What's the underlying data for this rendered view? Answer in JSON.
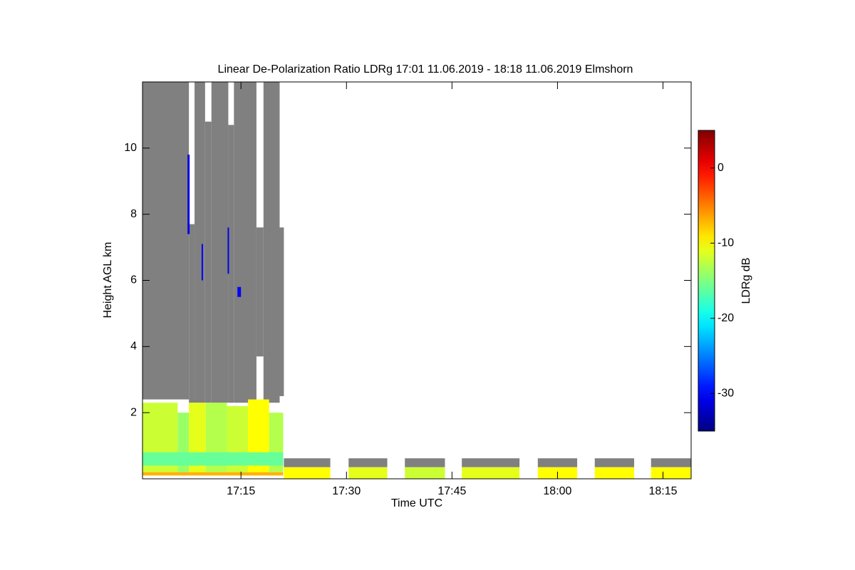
{
  "chart_data": {
    "type": "heatmap",
    "title": "Linear De-Polarization Ratio LDRg   17:01 11.06.2019 - 18:18 11.06.2019 Elmshorn",
    "x_label": "Time UTC",
    "y_label": "Height AGL km",
    "colorbar_label": "LDRg dB",
    "xlim": [
      1021,
      1099
    ],
    "xticks": [
      {
        "value": 1035,
        "label": "17:15"
      },
      {
        "value": 1050,
        "label": "17:30"
      },
      {
        "value": 1065,
        "label": "17:45"
      },
      {
        "value": 1080,
        "label": "18:00"
      },
      {
        "value": 1095,
        "label": "18:15"
      }
    ],
    "ylim": [
      0,
      12
    ],
    "yticks": [
      2,
      4,
      6,
      8,
      10
    ],
    "clim": [
      -35,
      5
    ],
    "cticks": [
      0,
      -10,
      -20,
      -30
    ],
    "colormap": "jet",
    "no_signal_color": "#808080",
    "cells": [
      {
        "t": [
          1021,
          1027.6
        ],
        "h": [
          2.4,
          12
        ],
        "v": null
      },
      {
        "t": [
          1028.4,
          1029.9
        ],
        "h": [
          2.3,
          12
        ],
        "v": null
      },
      {
        "t": [
          1030.8,
          1033.2
        ],
        "h": [
          2.3,
          12
        ],
        "v": null
      },
      {
        "t": [
          1034,
          1037.2
        ],
        "h": [
          2.3,
          12
        ],
        "v": null
      },
      {
        "t": [
          1038.2,
          1040.5
        ],
        "h": [
          2.3,
          12
        ],
        "v": null
      },
      {
        "t": [
          1040.5,
          1041.1
        ],
        "h": [
          2.5,
          7.6
        ],
        "v": null
      },
      {
        "t": [
          1027.6,
          1028.4
        ],
        "h": [
          2.3,
          7.7
        ],
        "v": null
      },
      {
        "t": [
          1029.9,
          1030.8
        ],
        "h": [
          2.3,
          10.8
        ],
        "v": null
      },
      {
        "t": [
          1033.2,
          1034
        ],
        "h": [
          2.3,
          10.7
        ],
        "v": null
      },
      {
        "t": [
          1037.2,
          1038.2
        ],
        "h": [
          3.7,
          7.6
        ],
        "v": null
      },
      {
        "t": [
          1021,
          1026
        ],
        "h": [
          0.2,
          2.3
        ],
        "v": -12
      },
      {
        "t": [
          1026,
          1027.6
        ],
        "h": [
          0.2,
          2.0
        ],
        "v": -14
      },
      {
        "t": [
          1027.6,
          1030
        ],
        "h": [
          0.2,
          2.3
        ],
        "v": -11
      },
      {
        "t": [
          1030,
          1033
        ],
        "h": [
          0.2,
          2.3
        ],
        "v": -13
      },
      {
        "t": [
          1033,
          1036
        ],
        "h": [
          0.2,
          2.2
        ],
        "v": -12
      },
      {
        "t": [
          1036,
          1039
        ],
        "h": [
          0.2,
          2.4
        ],
        "v": -10
      },
      {
        "t": [
          1039,
          1041
        ],
        "h": [
          0.2,
          2.0
        ],
        "v": -13
      },
      {
        "t": [
          1021,
          1041
        ],
        "h": [
          0.4,
          0.8
        ],
        "v": -16
      },
      {
        "t": [
          1021,
          1041
        ],
        "h": [
          0.1,
          0.2
        ],
        "v": -7
      },
      {
        "t": [
          1027.4,
          1027.7
        ],
        "h": [
          7.4,
          9.8
        ],
        "v": -31
      },
      {
        "t": [
          1034.5,
          1035
        ],
        "h": [
          5.5,
          5.8
        ],
        "v": -30
      },
      {
        "t": [
          1029.4,
          1029.6
        ],
        "h": [
          6.0,
          7.1
        ],
        "v": -30
      },
      {
        "t": [
          1033.1,
          1033.3
        ],
        "h": [
          6.2,
          7.6
        ],
        "v": -31
      },
      {
        "t": [
          1041.1,
          1047.7
        ],
        "h": [
          0.35,
          0.62
        ],
        "v": null
      },
      {
        "t": [
          1041.1,
          1047.7
        ],
        "h": [
          0,
          0.35
        ],
        "v": -10
      },
      {
        "t": [
          1050.3,
          1055.8
        ],
        "h": [
          0.35,
          0.62
        ],
        "v": null
      },
      {
        "t": [
          1050.3,
          1055.8
        ],
        "h": [
          0,
          0.35
        ],
        "v": -11
      },
      {
        "t": [
          1058.3,
          1064
        ],
        "h": [
          0.35,
          0.62
        ],
        "v": null
      },
      {
        "t": [
          1058.3,
          1064
        ],
        "h": [
          0,
          0.35
        ],
        "v": -12
      },
      {
        "t": [
          1066.4,
          1074.6
        ],
        "h": [
          0.35,
          0.62
        ],
        "v": null
      },
      {
        "t": [
          1066.4,
          1074.6
        ],
        "h": [
          0,
          0.35
        ],
        "v": -11
      },
      {
        "t": [
          1077.2,
          1082.8
        ],
        "h": [
          0.35,
          0.62
        ],
        "v": null
      },
      {
        "t": [
          1077.2,
          1082.8
        ],
        "h": [
          0,
          0.35
        ],
        "v": -10
      },
      {
        "t": [
          1085.3,
          1090.9
        ],
        "h": [
          0.35,
          0.62
        ],
        "v": null
      },
      {
        "t": [
          1085.3,
          1090.9
        ],
        "h": [
          0,
          0.35
        ],
        "v": -10
      },
      {
        "t": [
          1093.3,
          1099
        ],
        "h": [
          0.35,
          0.62
        ],
        "v": null
      },
      {
        "t": [
          1093.3,
          1099
        ],
        "h": [
          0,
          0.35
        ],
        "v": -10
      }
    ]
  }
}
